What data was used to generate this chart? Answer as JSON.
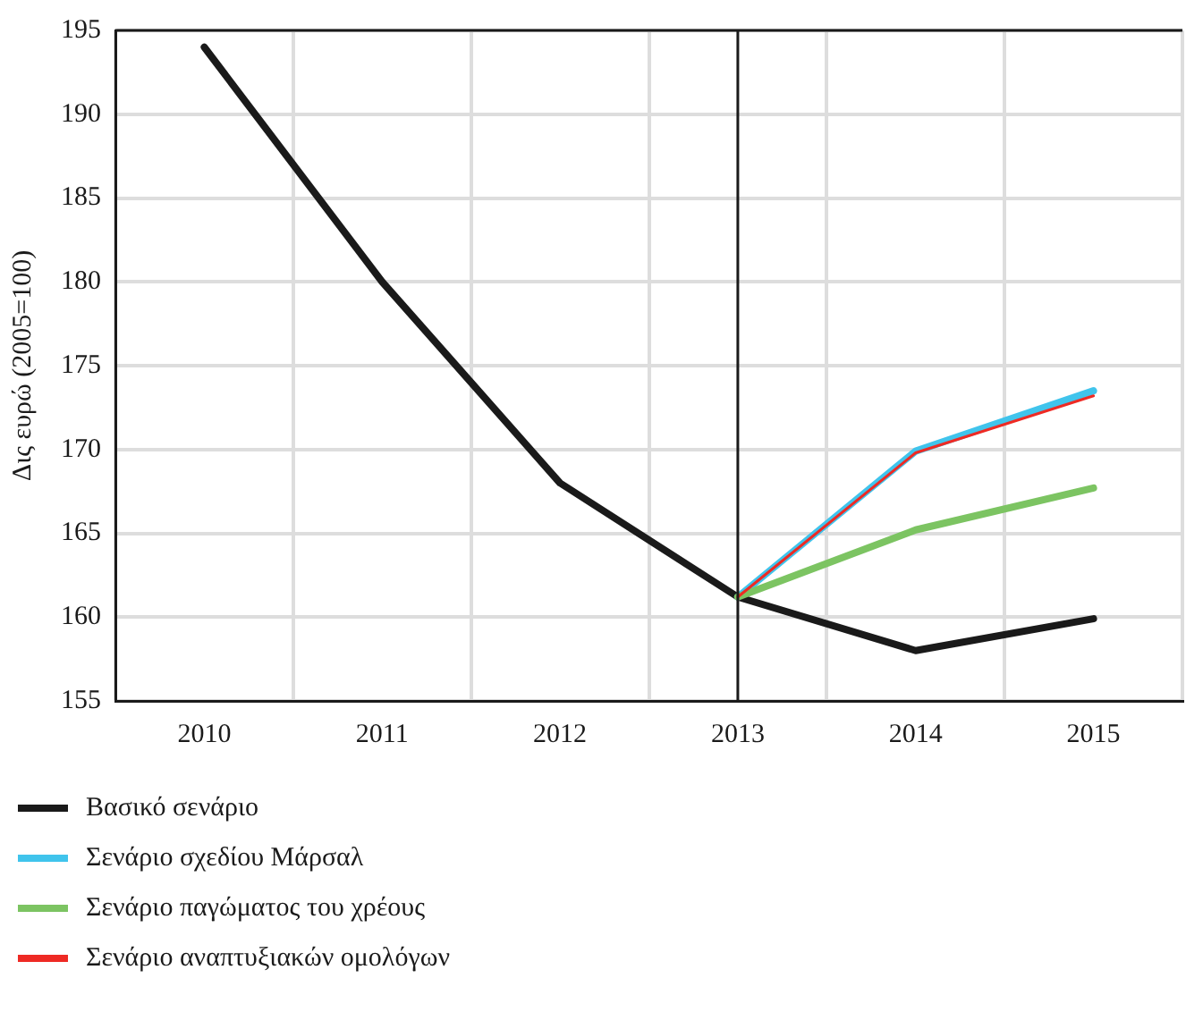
{
  "chart_data": {
    "type": "line",
    "ylabel": "Δις ευρώ (2005=100)",
    "categories": [
      "2010",
      "2011",
      "2012",
      "2013",
      "2014",
      "2015"
    ],
    "series": [
      {
        "name": "Βασικό σενάριο",
        "color": "#1a1a1a",
        "values": [
          194,
          180,
          168,
          161.2,
          158,
          159.9
        ]
      },
      {
        "name": "Σενάριο σχεδίου Μάρσαλ",
        "color": "#40c4ec",
        "values": [
          null,
          null,
          null,
          161.2,
          169.9,
          173.5
        ]
      },
      {
        "name": "Σενάριο παγώματος του χρέους",
        "color": "#7cc462",
        "values": [
          null,
          null,
          null,
          161.2,
          165.2,
          167.7
        ]
      },
      {
        "name": "Σενάριο αναπτυξιακών ομολόγων",
        "color": "#ee2a24",
        "values": [
          null,
          null,
          null,
          161.2,
          169.8,
          173.2
        ]
      }
    ],
    "ylim": [
      155,
      195
    ],
    "yticks": [
      155,
      160,
      165,
      170,
      175,
      180,
      185,
      190,
      195
    ],
    "ref_lines": [
      {
        "axis": "x",
        "value": "2013",
        "color": "#1a1a1a"
      }
    ],
    "grid": true,
    "legend": "bottom",
    "marker": "none",
    "line_style": "solid"
  }
}
